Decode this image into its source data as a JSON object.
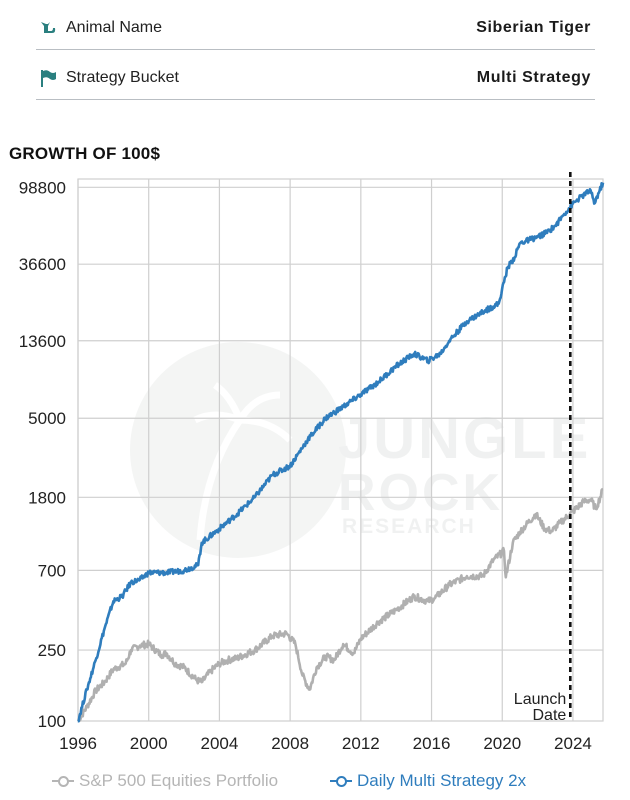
{
  "info": {
    "animal_label": "Animal Name",
    "animal_value": "Siberian Tiger",
    "bucket_label": "Strategy Bucket",
    "bucket_value": "Multi Strategy",
    "icon_color": "#2a7f7f"
  },
  "chart_data": {
    "type": "line",
    "title": "GROWTH OF 100$",
    "xlabel": "",
    "ylabel": "",
    "y_scale": "log",
    "xlim": [
      1996,
      2025.7
    ],
    "ylim": [
      100,
      110000
    ],
    "x_ticks": [
      1996,
      2000,
      2004,
      2008,
      2012,
      2016,
      2020,
      2024
    ],
    "y_ticks": [
      100,
      250,
      700,
      1800,
      5000,
      13600,
      36600,
      98800
    ],
    "grid": true,
    "legend_position": "bottom",
    "series": [
      {
        "name": "S&P 500 Equities Portfolio",
        "color": "#b0b0b0",
        "x": [
          1996,
          1996.5,
          1997,
          1997.5,
          1998,
          1998.7,
          1999,
          1999.5,
          2000,
          2000.7,
          2001,
          2001.5,
          2002,
          2002.7,
          2003,
          2003.5,
          2004,
          2004.5,
          2005,
          2006,
          2007,
          2007.8,
          2008.3,
          2008.7,
          2009.1,
          2009.5,
          2010,
          2010.5,
          2011,
          2011.6,
          2012,
          2013,
          2014,
          2015,
          2015.8,
          2016.2,
          2017,
          2018,
          2018.9,
          2019.5,
          2020.1,
          2020.2,
          2020.6,
          2021,
          2021.9,
          2022.4,
          2022.8,
          2023.3,
          2024,
          2024.6,
          2025,
          2025.3,
          2025.7
        ],
        "y": [
          100,
          120,
          148,
          165,
          195,
          210,
          250,
          265,
          270,
          235,
          240,
          210,
          200,
          170,
          165,
          190,
          210,
          220,
          225,
          250,
          300,
          310,
          270,
          180,
          150,
          200,
          230,
          220,
          270,
          240,
          290,
          360,
          420,
          500,
          470,
          490,
          580,
          650,
          650,
          800,
          900,
          640,
          1000,
          1150,
          1450,
          1200,
          1160,
          1300,
          1500,
          1700,
          1750,
          1550,
          2000
        ]
      },
      {
        "name": "Daily Multi Strategy 2x",
        "color": "#2f7dbd",
        "x": [
          1996,
          1996.5,
          1997,
          1997.5,
          1998,
          1998.5,
          1999,
          1999.5,
          2000,
          2001,
          2002,
          2002.8,
          2003,
          2004,
          2005,
          2006,
          2007,
          2008,
          2009,
          2010,
          2011,
          2012,
          2013,
          2014,
          2015,
          2015.8,
          2016.5,
          2017,
          2018,
          2019,
          2019.8,
          2020.3,
          2020.7,
          2021,
          2021.5,
          2022,
          2022.5,
          2023,
          2023.5,
          2024,
          2024.5,
          2025,
          2025.2,
          2025.7
        ],
        "y": [
          100,
          150,
          220,
          330,
          470,
          500,
          600,
          620,
          680,
          680,
          700,
          750,
          1000,
          1200,
          1450,
          1800,
          2400,
          2700,
          3800,
          5000,
          5800,
          6800,
          8000,
          9800,
          11500,
          10500,
          11500,
          13600,
          17500,
          20000,
          22000,
          35000,
          40000,
          48000,
          50000,
          52000,
          55000,
          60000,
          70000,
          80000,
          88000,
          95000,
          80000,
          105000
        ]
      }
    ],
    "annotations": [
      {
        "type": "vline",
        "x": 2023.85,
        "style": "dashed",
        "color": "#111111",
        "text": "Launch Date",
        "lines": [
          "Launch",
          "Date"
        ]
      }
    ]
  },
  "watermark": {
    "line1": "JUNGLE",
    "line2": "ROCK",
    "line3": "RESEARCH"
  }
}
